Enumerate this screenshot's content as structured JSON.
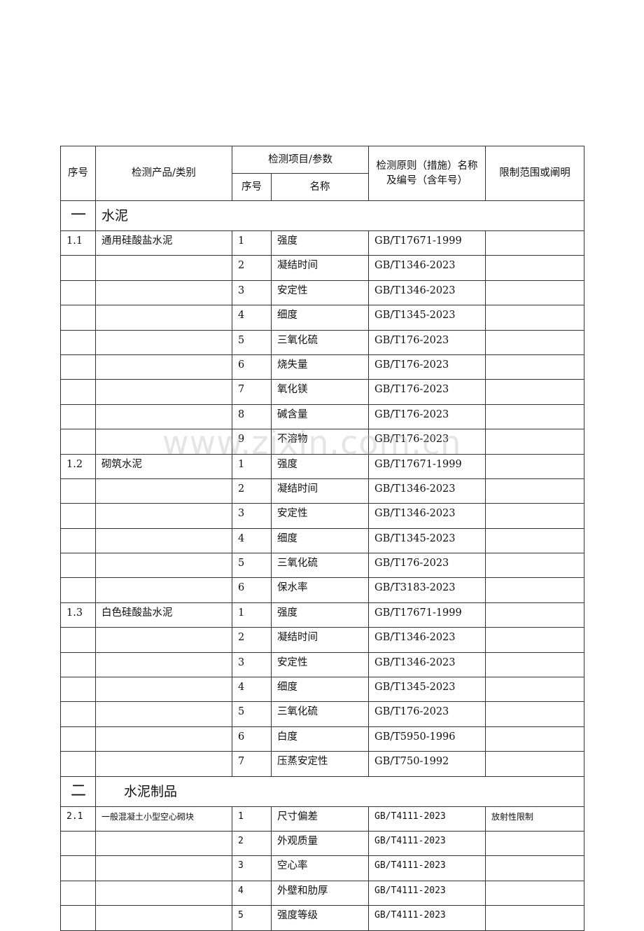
{
  "header": {
    "seq": "序号",
    "product": "检测产品/类别",
    "item_group": "检测项目/参数",
    "item_seq": "序号",
    "item_name": "名称",
    "standard": "检测原则（措施）名称及编号（含年号）",
    "limit": "限制范围或阐明"
  },
  "sections": [
    {
      "num": "一",
      "title": "水泥",
      "groups": [
        {
          "id": "1.1",
          "product": "通用硅酸盐水泥",
          "items": [
            [
              "1",
              "强度",
              "GB/T17671-1999",
              ""
            ],
            [
              "2",
              "凝结时间",
              "GB/T1346-2023",
              ""
            ],
            [
              "3",
              "安定性",
              "GB/T1346-2023",
              ""
            ],
            [
              "4",
              "细度",
              "GB/T1345-2023",
              ""
            ],
            [
              "5",
              "三氧化硫",
              "GB/T176-2023",
              ""
            ],
            [
              "6",
              "烧失量",
              "GB/T176-2023",
              ""
            ],
            [
              "7",
              "氧化镁",
              "GB/T176-2023",
              ""
            ],
            [
              "8",
              "碱含量",
              "GB/T176-2023",
              ""
            ],
            [
              "9",
              "不溶物",
              "GB/T176-2023",
              ""
            ]
          ]
        },
        {
          "id": "1.2",
          "product": "砌筑水泥",
          "items": [
            [
              "1",
              "强度",
              "GB/T17671-1999",
              ""
            ],
            [
              "2",
              "凝结时间",
              "GB/T1346-2023",
              ""
            ],
            [
              "3",
              "安定性",
              "GB/T1346-2023",
              ""
            ],
            [
              "4",
              "细度",
              "GB/T1345-2023",
              ""
            ],
            [
              "5",
              "三氧化硫",
              "GB/T176-2023",
              ""
            ],
            [
              "6",
              "保水率",
              "GB/T3183-2023",
              ""
            ]
          ]
        },
        {
          "id": "1.3",
          "product": "白色硅酸盐水泥",
          "items": [
            [
              "1",
              "强度",
              "GB/T17671-1999",
              ""
            ],
            [
              "2",
              "凝结时间",
              "GB/T1346-2023",
              ""
            ],
            [
              "3",
              "安定性",
              "GB/T1346-2023",
              ""
            ],
            [
              "4",
              "细度",
              "GB/T1345-2023",
              ""
            ],
            [
              "5",
              "三氧化硫",
              "GB/T176-2023",
              ""
            ],
            [
              "6",
              "白度",
              "GB/T5950-1996",
              ""
            ],
            [
              "7",
              "压蒸安定性",
              "GB/T750-1992",
              ""
            ]
          ]
        }
      ]
    },
    {
      "num": "二",
      "title": "水泥制品",
      "mono": true,
      "groups": [
        {
          "id": "2.1",
          "product": "一般混凝土小型空心砌块",
          "items": [
            [
              "1",
              "尺寸偏差",
              "GB/T4111-2023",
              "放射性限制"
            ],
            [
              "2",
              "外观质量",
              "GB/T4111-2023",
              ""
            ],
            [
              "3",
              "空心率",
              "GB/T4111-2023",
              ""
            ],
            [
              "4",
              "外壁和肋厚",
              "GB/T4111-2023",
              ""
            ],
            [
              "5",
              "强度等级",
              "GB/T4111-2023",
              ""
            ]
          ]
        }
      ]
    }
  ],
  "watermark": "www.zixin.com.cn"
}
